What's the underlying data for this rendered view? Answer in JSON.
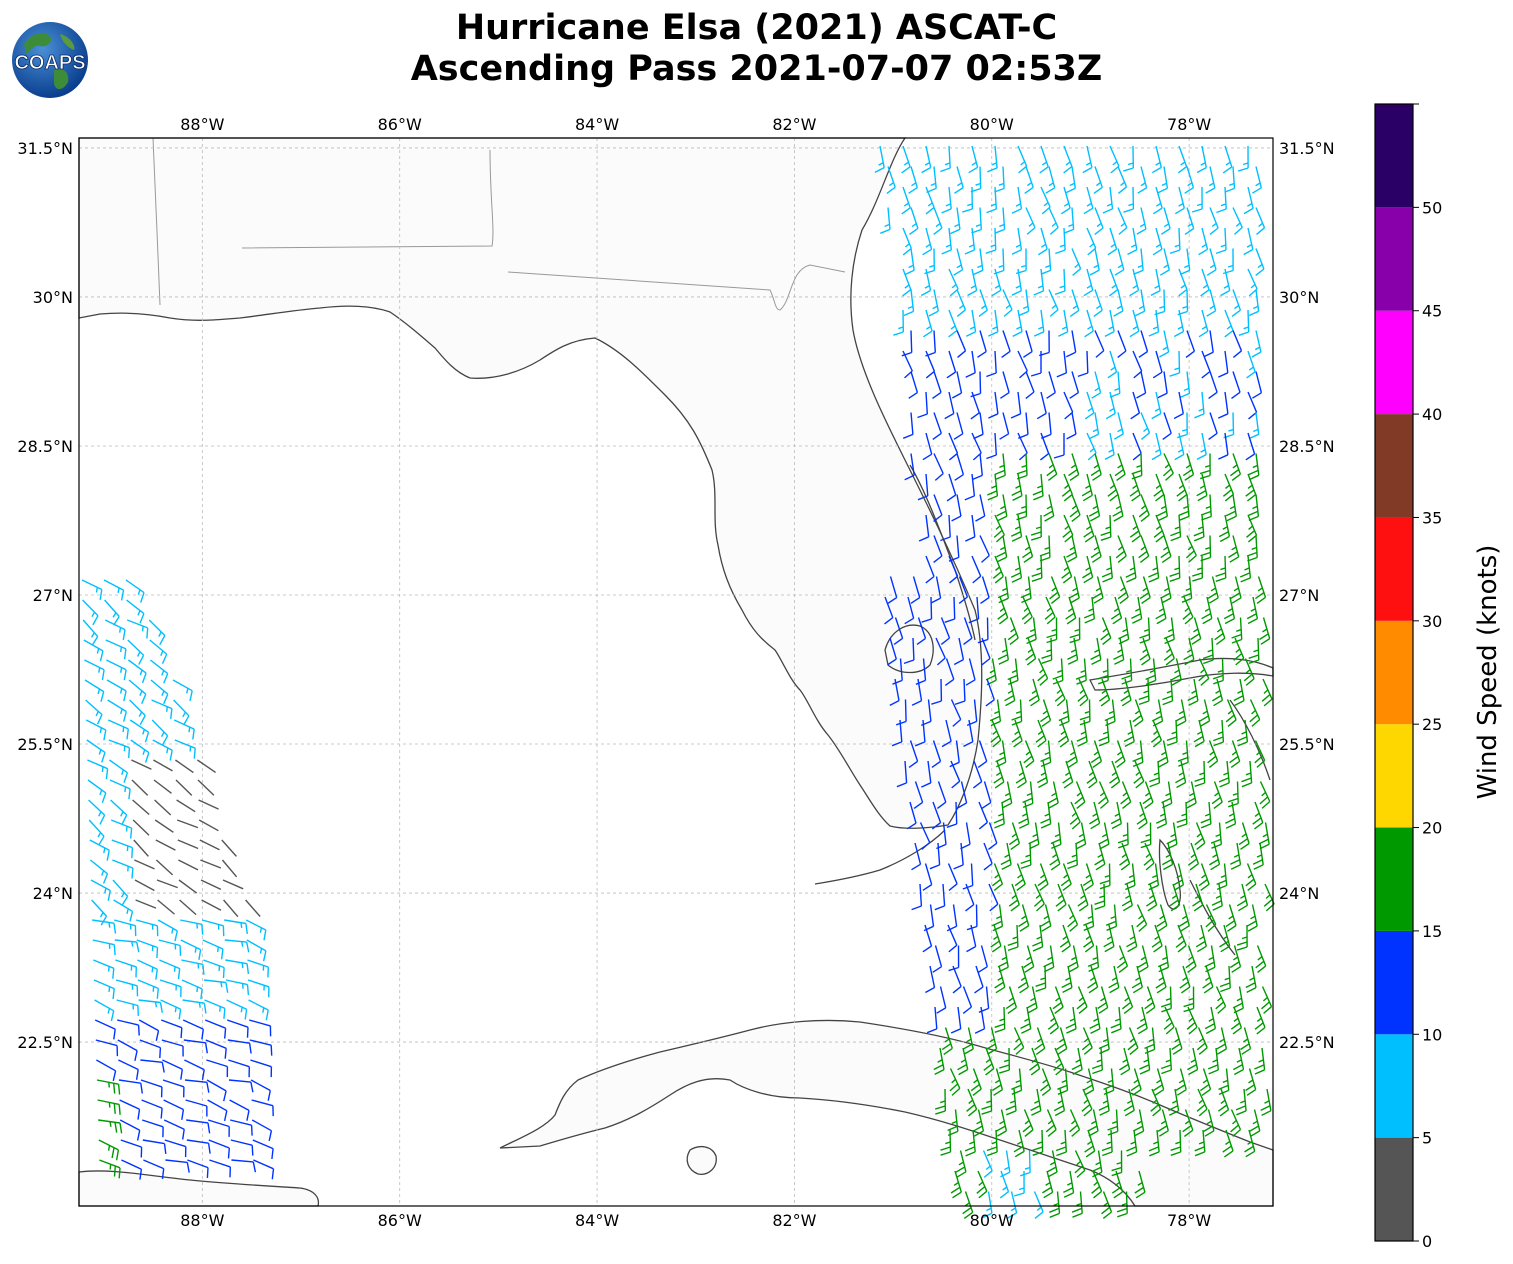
{
  "title_line1": "Hurricane Elsa (2021) ASCAT-C",
  "title_line2": "Ascending Pass 2021-07-07 02:53Z",
  "logo_text": "COAPS",
  "map": {
    "lon_range": [
      -89.25,
      -77.15
    ],
    "lat_range": [
      20.85,
      31.6
    ],
    "lon_ticks": [
      "88°W",
      "86°W",
      "84°W",
      "82°W",
      "80°W",
      "78°W"
    ],
    "lat_ticks": [
      "31.5°N",
      "30°N",
      "28.5°N",
      "27°N",
      "25.5°N",
      "24°N",
      "22.5°N"
    ],
    "gridlines": true,
    "icon": "wind-barb-icon"
  },
  "colorbar": {
    "label": "Wind Speed (knots)",
    "tick_labels": [
      "0",
      "5",
      "10",
      "15",
      "20",
      "25",
      "30",
      "35",
      "40",
      "45",
      "50"
    ],
    "bins": [
      {
        "min": 0,
        "max": 5,
        "color": "#555555"
      },
      {
        "min": 5,
        "max": 10,
        "color": "#00bfff"
      },
      {
        "min": 10,
        "max": 15,
        "color": "#0033ff"
      },
      {
        "min": 15,
        "max": 20,
        "color": "#009900"
      },
      {
        "min": 20,
        "max": 25,
        "color": "#ffd700"
      },
      {
        "min": 25,
        "max": 30,
        "color": "#ff8c00"
      },
      {
        "min": 30,
        "max": 35,
        "color": "#ff1010"
      },
      {
        "min": 35,
        "max": 40,
        "color": "#803a26"
      },
      {
        "min": 40,
        "max": 45,
        "color": "#ff00ff"
      },
      {
        "min": 45,
        "max": 50,
        "color": "#8800aa"
      },
      {
        "min": 50,
        "max": 55,
        "color": "#2a0066"
      }
    ]
  },
  "colors": {
    "land": "#fbfbfb",
    "coastline": "#444444",
    "border": "#999999",
    "grid": "#bbbbbb"
  }
}
